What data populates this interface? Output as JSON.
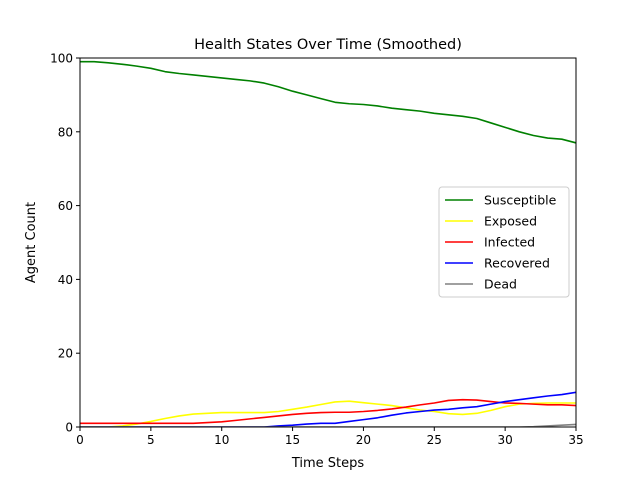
{
  "chart_data": {
    "type": "line",
    "title": "Health States Over Time (Smoothed)",
    "xlabel": "Time Steps",
    "ylabel": "Agent Count",
    "xlim": [
      0,
      35
    ],
    "ylim": [
      0,
      100
    ],
    "xticks": [
      0,
      5,
      10,
      15,
      20,
      25,
      30,
      35
    ],
    "yticks": [
      0,
      20,
      40,
      60,
      80,
      100
    ],
    "grid": false,
    "legend_position": "center-right",
    "x": [
      0,
      1,
      2,
      3,
      4,
      5,
      6,
      7,
      8,
      9,
      10,
      11,
      12,
      13,
      14,
      15,
      16,
      17,
      18,
      19,
      20,
      21,
      22,
      23,
      24,
      25,
      26,
      27,
      28,
      29,
      30,
      31,
      32,
      33,
      34,
      35
    ],
    "series": [
      {
        "name": "Susceptible",
        "color": "#008000",
        "values": [
          99,
          99,
          98.7,
          98.3,
          97.8,
          97.2,
          96.3,
          95.8,
          95.4,
          95.0,
          94.6,
          94.2,
          93.8,
          93.2,
          92.2,
          91.0,
          90.0,
          89.0,
          88.0,
          87.6,
          87.4,
          87.0,
          86.4,
          86.0,
          85.6,
          85.0,
          84.6,
          84.2,
          83.6,
          82.4,
          81.2,
          80.0,
          79.0,
          78.3,
          78.0,
          77.0
        ]
      },
      {
        "name": "Exposed",
        "color": "#ffff00",
        "values": [
          0,
          0,
          0,
          0.3,
          0.8,
          1.5,
          2.3,
          3.0,
          3.5,
          3.7,
          3.9,
          3.9,
          3.9,
          3.9,
          4.2,
          4.8,
          5.4,
          6.1,
          6.8,
          7.0,
          6.6,
          6.2,
          5.8,
          5.2,
          4.6,
          4.2,
          3.6,
          3.4,
          3.7,
          4.5,
          5.5,
          6.2,
          6.4,
          6.5,
          6.5,
          6.5
        ]
      },
      {
        "name": "Infected",
        "color": "#ff0000",
        "values": [
          1,
          1,
          1,
          1,
          1,
          1,
          1,
          1,
          1,
          1.2,
          1.4,
          1.8,
          2.2,
          2.6,
          3.0,
          3.4,
          3.7,
          3.9,
          4.0,
          4.0,
          4.2,
          4.5,
          4.9,
          5.4,
          6.0,
          6.5,
          7.2,
          7.4,
          7.3,
          6.9,
          6.5,
          6.4,
          6.2,
          6.0,
          6.0,
          5.8
        ]
      },
      {
        "name": "Recovered",
        "color": "#0000ff",
        "values": [
          0,
          0,
          0,
          0,
          0,
          0,
          0,
          0,
          0,
          0,
          0,
          0,
          0,
          0,
          0.3,
          0.5,
          0.8,
          1.0,
          1.0,
          1.5,
          2.0,
          2.5,
          3.2,
          3.8,
          4.2,
          4.6,
          4.8,
          5.2,
          5.5,
          6.2,
          6.9,
          7.4,
          7.9,
          8.4,
          8.8,
          9.4
        ]
      },
      {
        "name": "Dead",
        "color": "#808080",
        "values": [
          0,
          0,
          0,
          0,
          0,
          0,
          0,
          0,
          0,
          0,
          0,
          0,
          0,
          0,
          0,
          0,
          0,
          0,
          0,
          0,
          0,
          0,
          0,
          0,
          0,
          0,
          0,
          0,
          0,
          0,
          0,
          0,
          0.1,
          0.3,
          0.5,
          0.7
        ]
      }
    ]
  }
}
